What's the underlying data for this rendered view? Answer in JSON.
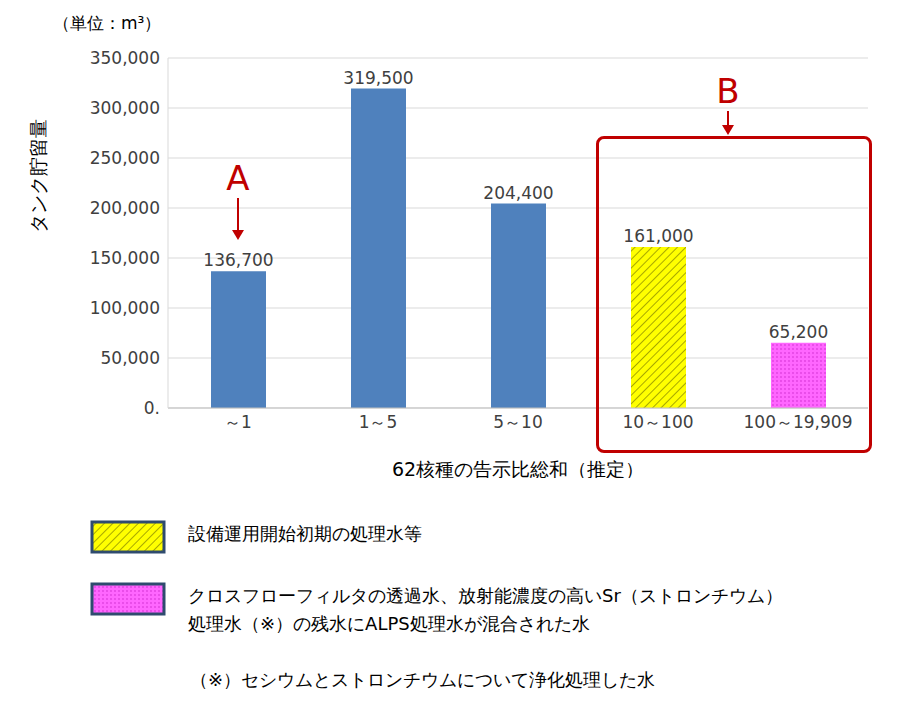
{
  "chart_data": {
    "type": "bar",
    "unit_label": "（単位：m³）",
    "y_label": "タンク貯留量",
    "x_label": "62核種の告示比総和（推定）",
    "categories": [
      "～1",
      "1～5",
      "5～10",
      "10～100",
      "100～19,909"
    ],
    "values": [
      136700,
      319500,
      204400,
      161000,
      65200
    ],
    "value_labels": [
      "136,700",
      "319,500",
      "204,400",
      "161,000",
      "65,200"
    ],
    "colors": [
      "#4f81bd",
      "#4f81bd",
      "#4f81bd",
      "#ffff00",
      "#ff66ff"
    ],
    "ylim": [
      0,
      350000
    ],
    "yticks": [
      {
        "value": 0,
        "label": "0."
      },
      {
        "value": 50000,
        "label": "50,000"
      },
      {
        "value": 100000,
        "label": "100,000"
      },
      {
        "value": 150000,
        "label": "150,000"
      },
      {
        "value": 200000,
        "label": "200,000"
      },
      {
        "value": 250000,
        "label": "250,000"
      },
      {
        "value": 300000,
        "label": "300,000"
      },
      {
        "value": 350000,
        "label": "350,000"
      }
    ],
    "grid": true,
    "data_labels": true,
    "annotations": [
      {
        "text": "A",
        "categories": [
          "～1"
        ]
      },
      {
        "text": "B",
        "categories": [
          "10～100",
          "100～19,909"
        ]
      }
    ],
    "notes": [
      {
        "color": "#ffff00",
        "lines": [
          "設備運用開始初期の処理水等"
        ]
      },
      {
        "color": "#ff66ff",
        "lines": [
          "クロスフローフィルタの透過水、放射能濃度の高いSr（ストロンチウム）",
          "処理水（※）の残水にALPS処理水が混合された水"
        ]
      }
    ],
    "footnote": "（※）セシウムとストロンチウムについて浄化処理した水"
  }
}
